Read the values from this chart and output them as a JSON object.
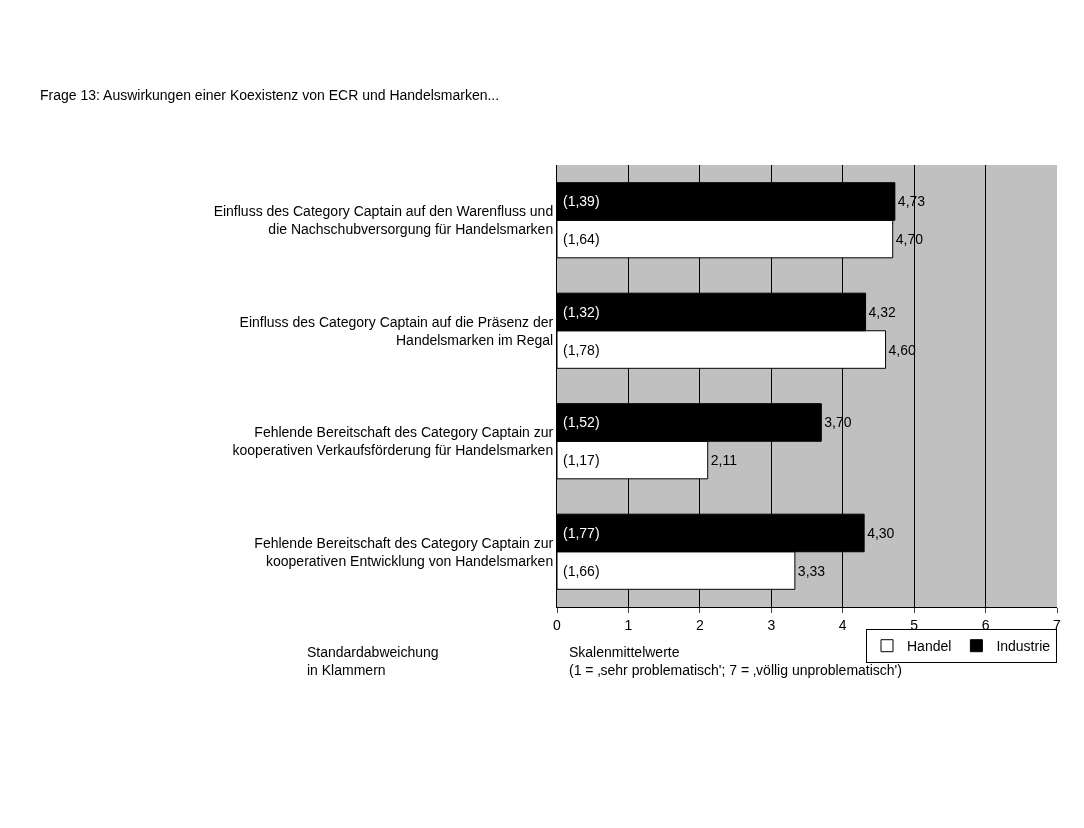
{
  "chart_data": {
    "type": "bar",
    "orientation": "horizontal",
    "title": "Frage 13: Auswirkungen einer Koexistenz von ECR und Handelsmarken...",
    "xlabel": "Skalenmittelwerte\n(1 = ‚sehr problematisch'; 7 = ‚völlig unproblematisch')",
    "categories": [
      "Einfluss des Category Captain auf den Warenfluss und die Nachschubversorgung für Handelsmarken",
      "Einfluss des Category Captain auf die Präsenz der Handelsmarken im Regal",
      "Fehlende Bereitschaft des Category Captain zur kooperativen Verkaufsförderung für Handelsmarken",
      "Fehlende Bereitschaft des Category Captain zur kooperativen Entwicklung von Handelsmarken"
    ],
    "series": [
      {
        "name": "Handel",
        "color": "#ffffff",
        "values": [
          4.7,
          4.6,
          2.11,
          3.33
        ],
        "value_labels": [
          "4,70",
          "4,60",
          "2,11",
          "3,33"
        ]
      },
      {
        "name": "Industrie",
        "color": "#000000",
        "values": [
          4.73,
          4.32,
          3.7,
          4.3
        ],
        "value_labels": [
          "4,73",
          "4,32",
          "3,70",
          "4,30"
        ]
      }
    ],
    "annotations": [
      "(1,64)",
      "(1,39)",
      "(1,78)",
      "(1,32)",
      "(1,17)",
      "(1,52)",
      "(1,66)",
      "(1,77)",
      "Standardabweichung\nin Klammern"
    ],
    "xlim": [
      0,
      7
    ],
    "xticks": [
      0,
      1,
      2,
      3,
      4,
      5,
      6,
      7
    ],
    "grid": "x",
    "legend": "bottom right"
  }
}
